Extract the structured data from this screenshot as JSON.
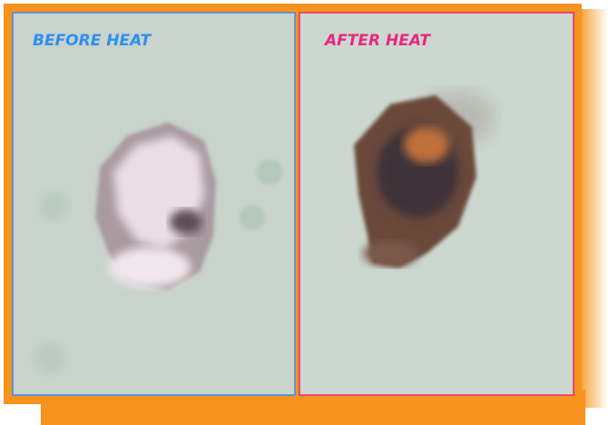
{
  "panels": [
    {
      "label": "BEFORE HEAT"
    },
    {
      "label": "AFTER HEAT"
    }
  ]
}
